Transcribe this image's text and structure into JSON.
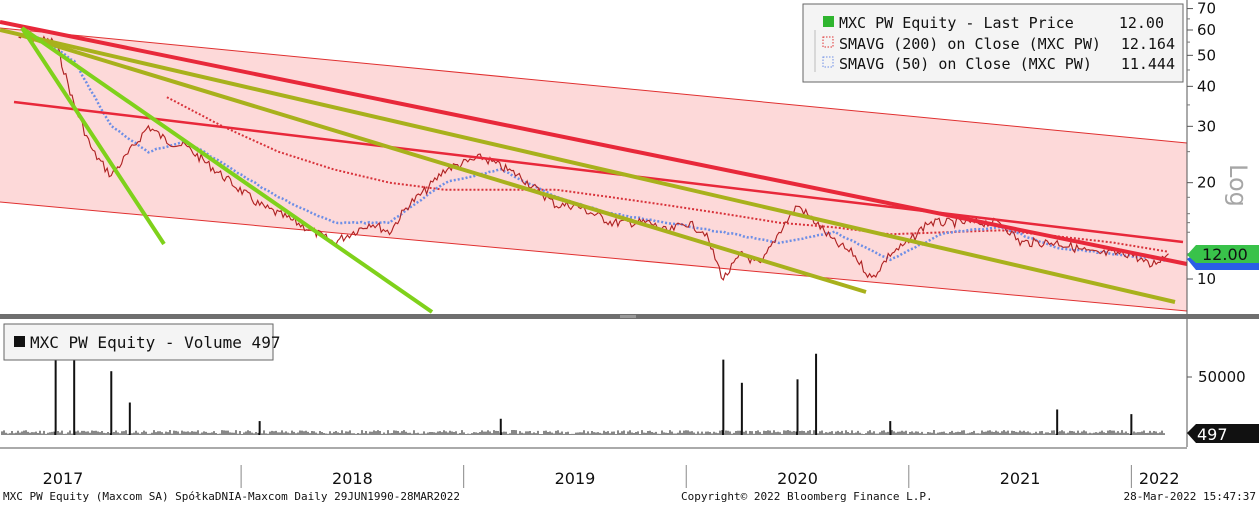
{
  "price_panel": {
    "legend": [
      {
        "label": "MXC PW Equity - Last Price",
        "value": "12.00",
        "color": "#2fb52f",
        "style": "solid"
      },
      {
        "label": "SMAVG (200)  on Close (MXC PW)",
        "value": "12.164",
        "color": "#e03030",
        "style": "dotted"
      },
      {
        "label": "SMAVG (50)  on Close (MXC PW)",
        "value": "11.444",
        "color": "#6d8ee6",
        "style": "dotted"
      }
    ],
    "scale_label": "Log",
    "last_price_tag": "12.00"
  },
  "volume_panel": {
    "legend": "MXC PW Equity - Volume 497",
    "last_volume_tag": "497"
  },
  "footer": {
    "left": "MXC PW Equity (Maxcom SA) SpółkaDNIA-Maxcom  Daily 29JUN1990-28MAR2022",
    "center": "Copyright© 2022 Bloomberg Finance L.P.",
    "right": "28-Mar-2022 15:47:37"
  },
  "colors": {
    "price_line": "#e03030",
    "sma200": "#d8323a",
    "sma50": "#6d8ee6",
    "channel_fill": "#fdd9d9",
    "red_trend": "#e8283a",
    "olive_trend": "#a8b11c",
    "green_trend": "#7fd11b",
    "tag_green": "#39c24a",
    "tag_blue": "#2a5ee6"
  },
  "chart_data": [
    {
      "type": "line",
      "title": "MXC PW Equity - Last Price",
      "scale": "log",
      "ylim": [
        9,
        70
      ],
      "y_ticks": [
        10,
        20,
        30,
        40,
        50,
        60,
        70
      ],
      "x_ticks": [
        "2017",
        "2018",
        "2019",
        "2020",
        "2021",
        "2022"
      ],
      "series": [
        {
          "name": "MXC PW Equity - Last Price",
          "points": [
            [
              "2017-01",
              57
            ],
            [
              "2017-03",
              55
            ],
            [
              "2017-04",
              35
            ],
            [
              "2017-05",
              25
            ],
            [
              "2017-06",
              21
            ],
            [
              "2017-07",
              25
            ],
            [
              "2017-08",
              30
            ],
            [
              "2017-09",
              27
            ],
            [
              "2017-10",
              26
            ],
            [
              "2017-12",
              21
            ],
            [
              "2018-02",
              17
            ],
            [
              "2018-04",
              15
            ],
            [
              "2018-06",
              13
            ],
            [
              "2018-08",
              15
            ],
            [
              "2018-09",
              14
            ],
            [
              "2018-10",
              17
            ],
            [
              "2018-11",
              19
            ],
            [
              "2018-12",
              22
            ],
            [
              "2019-01",
              23
            ],
            [
              "2019-02",
              24
            ],
            [
              "2019-04",
              21
            ],
            [
              "2019-06",
              17
            ],
            [
              "2019-07",
              17
            ],
            [
              "2019-09",
              15
            ],
            [
              "2019-11",
              15
            ],
            [
              "2019-12",
              14
            ],
            [
              "2020-01",
              15
            ],
            [
              "2020-02",
              14
            ],
            [
              "2020-03",
              10
            ],
            [
              "2020-04",
              12
            ],
            [
              "2020-05",
              11
            ],
            [
              "2020-06",
              14
            ],
            [
              "2020-07",
              17
            ],
            [
              "2020-08",
              15
            ],
            [
              "2020-09",
              13
            ],
            [
              "2020-10",
              12
            ],
            [
              "2020-11",
              10
            ],
            [
              "2020-12",
              12
            ],
            [
              "2021-01",
              13
            ],
            [
              "2021-02",
              15
            ],
            [
              "2021-04",
              15
            ],
            [
              "2021-06",
              15
            ],
            [
              "2021-07",
              13
            ],
            [
              "2021-09",
              13
            ],
            [
              "2021-11",
              12
            ],
            [
              "2022-01",
              12
            ],
            [
              "2022-02",
              11
            ],
            [
              "2022-03",
              12
            ]
          ]
        },
        {
          "name": "SMAVG (200)  on Close (MXC PW)",
          "points": [
            [
              "2017-09",
              37
            ],
            [
              "2017-12",
              30
            ],
            [
              "2018-03",
              25
            ],
            [
              "2018-06",
              22
            ],
            [
              "2018-09",
              20
            ],
            [
              "2018-12",
              19
            ],
            [
              "2019-03",
              19
            ],
            [
              "2019-06",
              19
            ],
            [
              "2019-09",
              18
            ],
            [
              "2019-12",
              17
            ],
            [
              "2020-03",
              16
            ],
            [
              "2020-06",
              15
            ],
            [
              "2020-09",
              14.5
            ],
            [
              "2020-12",
              13.8
            ],
            [
              "2021-03",
              14
            ],
            [
              "2021-06",
              14.2
            ],
            [
              "2021-09",
              13.6
            ],
            [
              "2021-12",
              13
            ],
            [
              "2022-03",
              12.164
            ]
          ]
        },
        {
          "name": "SMAVG (50)  on Close (MXC PW)",
          "points": [
            [
              "2017-02",
              57
            ],
            [
              "2017-04",
              48
            ],
            [
              "2017-06",
              30
            ],
            [
              "2017-08",
              25
            ],
            [
              "2017-10",
              27
            ],
            [
              "2017-12",
              23
            ],
            [
              "2018-03",
              18
            ],
            [
              "2018-06",
              15
            ],
            [
              "2018-09",
              15
            ],
            [
              "2018-12",
              20
            ],
            [
              "2019-03",
              22
            ],
            [
              "2019-06",
              18
            ],
            [
              "2019-09",
              16
            ],
            [
              "2019-12",
              15
            ],
            [
              "2020-03",
              14
            ],
            [
              "2020-06",
              13
            ],
            [
              "2020-09",
              14
            ],
            [
              "2020-12",
              11.5
            ],
            [
              "2021-03",
              14
            ],
            [
              "2021-06",
              14.5
            ],
            [
              "2021-09",
              12.5
            ],
            [
              "2021-12",
              12
            ],
            [
              "2022-03",
              11.444
            ]
          ]
        }
      ]
    },
    {
      "type": "bar",
      "title": "MXC PW Equity - Volume",
      "y_ticks": [
        50000
      ],
      "last_value": 497,
      "spikes": [
        [
          "2017-03",
          95000
        ],
        [
          "2017-04",
          90000
        ],
        [
          "2017-06",
          55000
        ],
        [
          "2017-07",
          28000
        ],
        [
          "2018-02",
          12000
        ],
        [
          "2019-03",
          14000
        ],
        [
          "2020-03",
          65000
        ],
        [
          "2020-04",
          45000
        ],
        [
          "2020-07",
          48000
        ],
        [
          "2020-08",
          70000
        ],
        [
          "2020-12",
          12000
        ],
        [
          "2021-09",
          22000
        ],
        [
          "2022-01",
          18000
        ]
      ]
    }
  ]
}
